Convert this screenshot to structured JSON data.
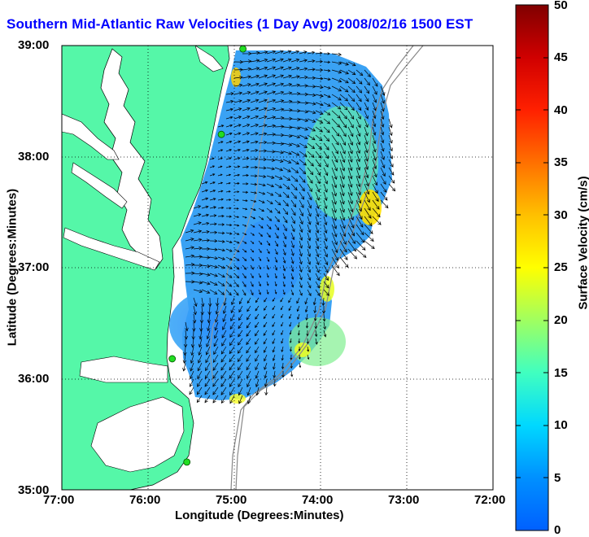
{
  "title": "Southern Mid-Atlantic Raw Velocities (1 Day Avg) 2008/02/16 1500 EST",
  "xlabel": "Longitude (Degrees:Minutes)",
  "ylabel": "Latitude (Degrees:Minutes)",
  "x_ticks": [
    "77:00",
    "76:00",
    "75:00",
    "74:00",
    "73:00",
    "72:00"
  ],
  "y_ticks": [
    "39:00",
    "38:00",
    "37:00",
    "36:00",
    "35:00"
  ],
  "colorbar": {
    "label": "Surface Velocity (cm/s)",
    "ticks": [
      "50",
      "45",
      "40",
      "35",
      "30",
      "25",
      "20",
      "15",
      "10",
      "5",
      "0"
    ],
    "range": [
      0,
      50
    ]
  },
  "colors": {
    "land": "#55f7a8",
    "ocean": "#ffffff",
    "title": "#0000ff",
    "station": "#22dd22"
  },
  "map_extent": {
    "lon": [
      -77,
      -72
    ],
    "lat": [
      35,
      39
    ]
  },
  "stations": [
    {
      "lon": -74.9,
      "lat": 38.97
    },
    {
      "lon": -75.15,
      "lat": 38.2
    },
    {
      "lon": -75.72,
      "lat": 36.18
    },
    {
      "lon": -75.55,
      "lat": 35.25
    }
  ]
}
